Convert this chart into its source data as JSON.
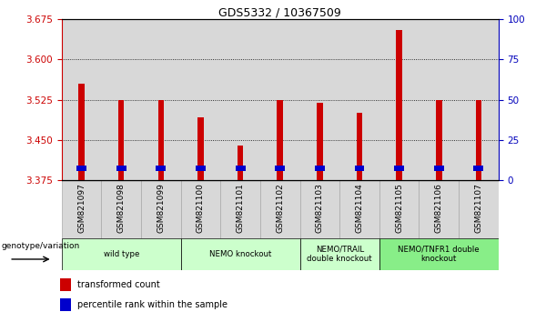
{
  "title": "GDS5332 / 10367509",
  "samples": [
    "GSM821097",
    "GSM821098",
    "GSM821099",
    "GSM821100",
    "GSM821101",
    "GSM821102",
    "GSM821103",
    "GSM821104",
    "GSM821105",
    "GSM821106",
    "GSM821107"
  ],
  "red_values": [
    3.555,
    3.525,
    3.525,
    3.493,
    3.44,
    3.525,
    3.52,
    3.5,
    3.655,
    3.525,
    3.525
  ],
  "blue_bottom": [
    3.393,
    3.393,
    3.393,
    3.393,
    3.393,
    3.393,
    3.393,
    3.393,
    3.393,
    3.393,
    3.393
  ],
  "blue_height": [
    0.01,
    0.01,
    0.01,
    0.01,
    0.01,
    0.01,
    0.01,
    0.01,
    0.01,
    0.01,
    0.01
  ],
  "base_value": 3.375,
  "ylim_left": [
    3.375,
    3.675
  ],
  "yticks_left": [
    3.375,
    3.45,
    3.525,
    3.6,
    3.675
  ],
  "yticks_right": [
    0,
    25,
    50,
    75,
    100
  ],
  "bar_color": "#cc0000",
  "blue_color": "#0000cc",
  "bar_width": 0.15,
  "blue_bar_width": 0.25,
  "group_boundaries": [
    {
      "label": "wild type",
      "start": 0,
      "end": 2,
      "color": "#ccffcc"
    },
    {
      "label": "NEMO knockout",
      "start": 3,
      "end": 5,
      "color": "#ccffcc"
    },
    {
      "label": "NEMO/TRAIL\ndouble knockout",
      "start": 6,
      "end": 7,
      "color": "#ccffcc"
    },
    {
      "label": "NEMO/TNFR1 double\nknockout",
      "start": 8,
      "end": 10,
      "color": "#88ee88"
    }
  ],
  "legend_items": [
    {
      "label": "transformed count",
      "color": "#cc0000"
    },
    {
      "label": "percentile rank within the sample",
      "color": "#0000cc"
    }
  ],
  "xlabel_left": "genotype/variation",
  "left_axis_color": "#cc0000",
  "right_axis_color": "#0000bb",
  "sample_cell_color": "#d8d8d8",
  "grid_lines": [
    3.45,
    3.525,
    3.6
  ]
}
